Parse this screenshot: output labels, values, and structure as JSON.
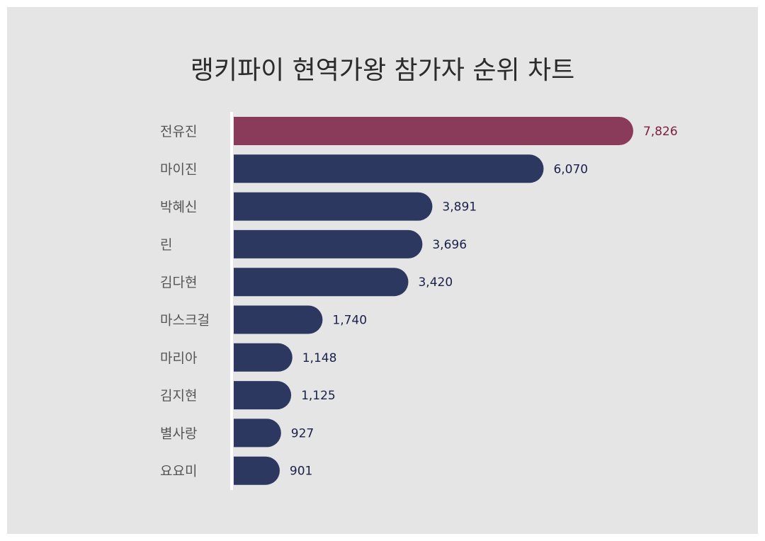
{
  "chart_data": {
    "type": "bar",
    "orientation": "horizontal",
    "title": "랭키파이 현역가왕 참가자 순위 차트",
    "categories": [
      "전유진",
      "마이진",
      "박혜신",
      "린",
      "김다현",
      "마스크걸",
      "마리아",
      "김지현",
      "별사랑",
      "요요미"
    ],
    "values": [
      7826,
      6070,
      3891,
      3696,
      3420,
      1740,
      1148,
      1125,
      927,
      901
    ],
    "value_labels": [
      "7,826",
      "6,070",
      "3,891",
      "3,696",
      "3,420",
      "1,740",
      "1,148",
      "1,125",
      "927",
      "901"
    ],
    "xlim": [
      0,
      7826
    ],
    "grid": false,
    "colors": {
      "highlight_bar": "#8a3b59",
      "bar": "#2d3860",
      "highlight_label": "#7a1f3f",
      "label": "#1a2048",
      "category_label": "#555555",
      "axis": "#ffffff",
      "background": "#e5e5e5"
    }
  }
}
